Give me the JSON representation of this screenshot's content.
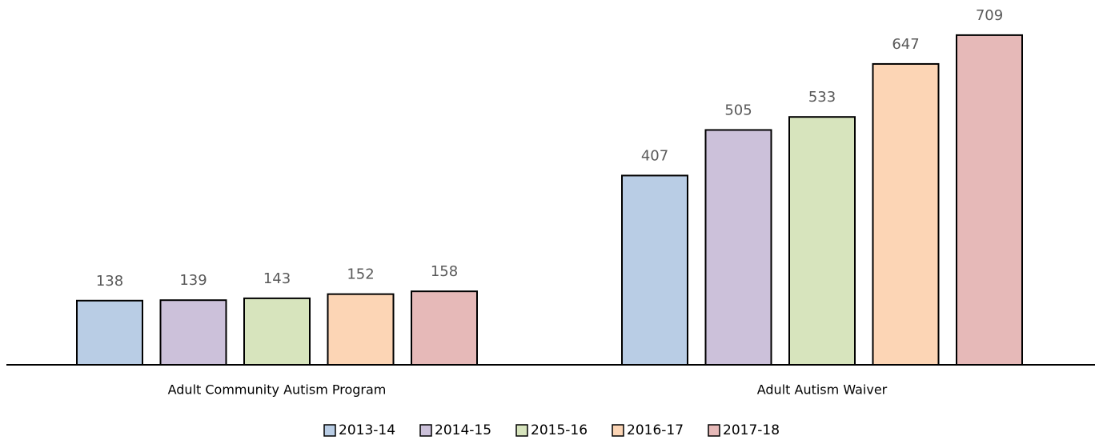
{
  "chart_data": {
    "type": "bar",
    "categories": [
      "Adult Community Autism Program",
      "Adult Autism Waiver"
    ],
    "series": [
      {
        "name": "2013-14",
        "color": "#b9cde5",
        "values": [
          138,
          407
        ]
      },
      {
        "name": "2014-15",
        "color": "#ccc1da",
        "values": [
          139,
          505
        ]
      },
      {
        "name": "2015-16",
        "color": "#d7e4bd",
        "values": [
          143,
          533
        ]
      },
      {
        "name": "2016-17",
        "color": "#fcd5b5",
        "values": [
          152,
          647
        ]
      },
      {
        "name": "2017-18",
        "color": "#e6b9b8",
        "values": [
          158,
          709
        ]
      }
    ],
    "ylim": [
      0,
      800
    ],
    "legend": "bottom"
  }
}
